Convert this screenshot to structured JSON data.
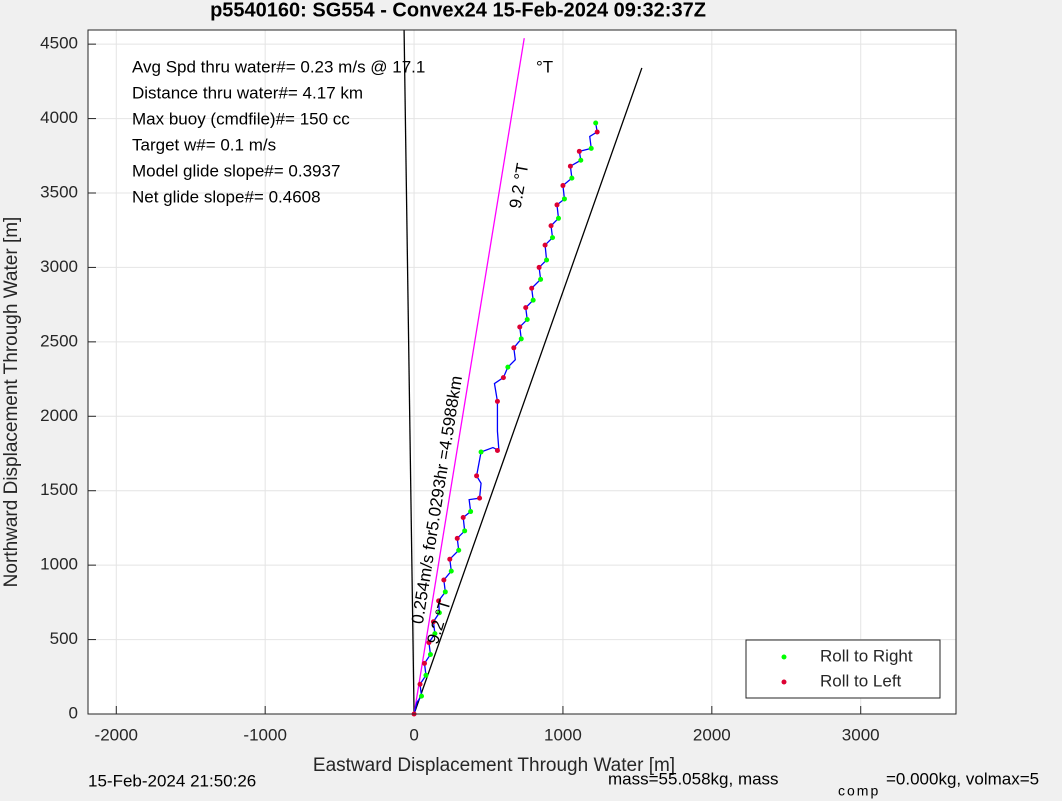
{
  "chart_data": {
    "type": "scatter",
    "title": "p5540160: SG554 - Convex24 15-Feb-2024 09:32:37Z",
    "x_label": "Eastward Displacement Through Water [m]",
    "y_label": "Northward Displacement Through Water [m]",
    "xlim": [
      -2190,
      3640
    ],
    "ylim": [
      0,
      4595
    ],
    "xticks": [
      -2000,
      -1000,
      0,
      1000,
      2000,
      3000
    ],
    "yticks": [
      0,
      500,
      1000,
      1500,
      2000,
      2500,
      3000,
      3500,
      4000,
      4500
    ],
    "grid": true,
    "legend": "lower-right",
    "info_lines": [
      "Avg Spd thru water#=  0.23 m/s @  17.1",
      "Distance thru water#=  4.17 km",
      "Max buoy (cmdfile)#= 150 cc",
      "Target w#= 0.1 m/s",
      "Model glide slope#= 0.3937",
      "Net glide slope#= 0.4608"
    ],
    "info_unit": "°T",
    "annotations": [
      "9.2 °T",
      "0.254m/s for5.0293hr =4.5988km",
      "9.2 °T"
    ],
    "footer_left": "15-Feb-2024 21:50:26",
    "footer_right": [
      "mass=55.058kg, mass",
      "comp",
      "=0.000kg, volmax=5"
    ],
    "lines": [
      {
        "color": "#000000",
        "x": [
          0,
          -67
        ],
        "y": [
          0,
          4595
        ]
      },
      {
        "color": "#000000",
        "x": [
          0,
          1530
        ],
        "y": [
          0,
          4340
        ]
      },
      {
        "color": "#ff00ff",
        "x": [
          0,
          740
        ],
        "y": [
          0,
          4540
        ]
      },
      {
        "color": "#0000ff",
        "x": [
          0,
          20,
          50,
          40,
          80,
          70,
          110,
          100,
          140,
          130,
          170,
          165,
          210,
          200,
          250,
          240,
          300,
          290,
          340,
          330,
          380,
          370,
          440,
          450,
          420,
          450,
          530,
          570,
          560,
          560,
          540,
          600,
          630,
          680,
          670,
          720,
          710,
          760,
          750,
          800,
          790,
          850,
          840,
          890,
          880,
          930,
          920,
          970,
          960,
          1010,
          1000,
          1060,
          1050,
          1120,
          1110,
          1190,
          1180,
          1230,
          1220
        ],
        "y": [
          0,
          80,
          120,
          200,
          260,
          340,
          400,
          480,
          540,
          620,
          680,
          760,
          820,
          900,
          960,
          1040,
          1100,
          1180,
          1230,
          1320,
          1360,
          1440,
          1450,
          1550,
          1600,
          1760,
          1790,
          1770,
          1900,
          2100,
          2220,
          2260,
          2330,
          2380,
          2460,
          2520,
          2600,
          2650,
          2730,
          2780,
          2860,
          2920,
          3000,
          3050,
          3150,
          3200,
          3280,
          3330,
          3420,
          3460,
          3550,
          3600,
          3680,
          3720,
          3780,
          3800,
          3880,
          3910,
          3970
        ]
      }
    ],
    "series": [
      {
        "name": "Roll to Right",
        "color": "#00ff00",
        "x": [
          50,
          80,
          110,
          140,
          170,
          210,
          250,
          300,
          340,
          380,
          450,
          630,
          720,
          760,
          800,
          850,
          890,
          930,
          970,
          1010,
          1060,
          1120,
          1190,
          1220
        ],
        "y": [
          120,
          260,
          400,
          540,
          680,
          820,
          960,
          1100,
          1230,
          1360,
          1760,
          2330,
          2520,
          2650,
          2780,
          2920,
          3050,
          3200,
          3330,
          3460,
          3600,
          3720,
          3800,
          3970
        ]
      },
      {
        "name": "Roll to Left",
        "color": "#dd0033",
        "x": [
          0,
          40,
          70,
          100,
          130,
          165,
          200,
          240,
          290,
          330,
          440,
          420,
          560,
          560,
          600,
          670,
          710,
          750,
          790,
          840,
          880,
          920,
          960,
          1000,
          1050,
          1110,
          1230
        ],
        "y": [
          0,
          200,
          340,
          480,
          620,
          760,
          900,
          1040,
          1180,
          1320,
          1450,
          1600,
          1770,
          2100,
          2260,
          2460,
          2600,
          2730,
          2860,
          3000,
          3150,
          3280,
          3420,
          3550,
          3680,
          3780,
          3910
        ]
      }
    ]
  }
}
